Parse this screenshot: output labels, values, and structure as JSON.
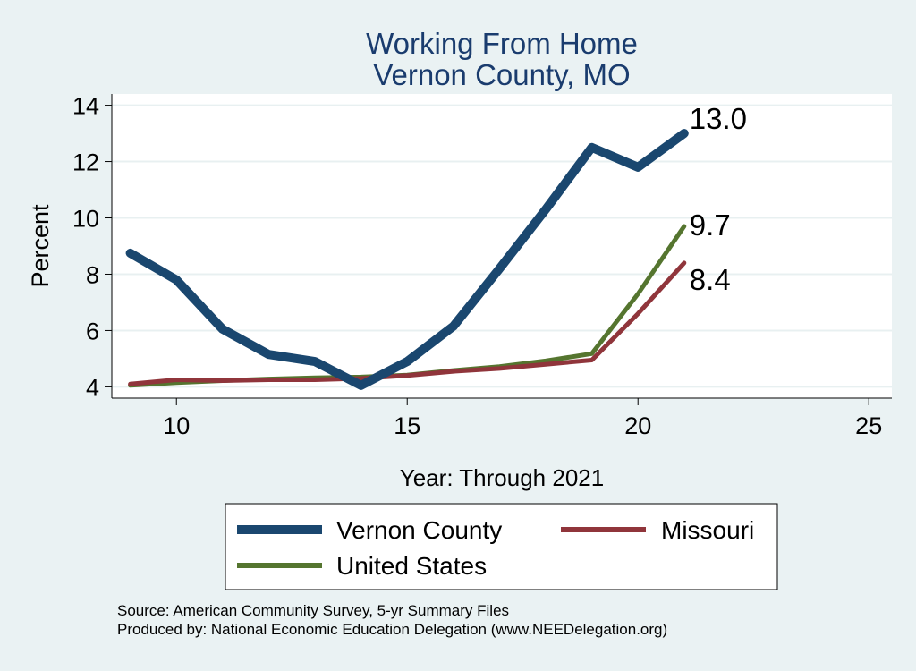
{
  "chart_data": {
    "type": "line",
    "title": "Working From Home",
    "subtitle": "Vernon County, MO",
    "xlabel": "Year: Through 2021",
    "ylabel": "Percent",
    "xlim": [
      8.6,
      25.5
    ],
    "ylim": [
      3.6,
      14.4
    ],
    "xticks": [
      10,
      15,
      20,
      25
    ],
    "yticks": [
      4,
      6,
      8,
      10,
      12,
      14
    ],
    "grid": "horizontal",
    "legend_position": "bottom",
    "series": [
      {
        "name": "Vernon County",
        "color": "#1a476f",
        "x": [
          9,
          10,
          11,
          12,
          13,
          14,
          15,
          16,
          17,
          18,
          19,
          20,
          21
        ],
        "values": [
          8.75,
          7.8,
          6.05,
          5.15,
          4.9,
          4.05,
          4.9,
          6.15,
          8.2,
          10.3,
          12.5,
          11.8,
          13.0
        ],
        "end_label": "13.0"
      },
      {
        "name": "Missouri",
        "color": "#90353b",
        "x": [
          9,
          10,
          11,
          12,
          13,
          14,
          15,
          16,
          17,
          18,
          19,
          20,
          21
        ],
        "values": [
          4.1,
          4.25,
          4.22,
          4.25,
          4.25,
          4.3,
          4.4,
          4.55,
          4.65,
          4.8,
          4.95,
          6.6,
          8.4
        ],
        "end_label": "8.4"
      },
      {
        "name": "United States",
        "color": "#55752f",
        "x": [
          9,
          10,
          11,
          12,
          13,
          14,
          15,
          16,
          17,
          18,
          19,
          20,
          21
        ],
        "values": [
          4.05,
          4.15,
          4.22,
          4.28,
          4.32,
          4.35,
          4.42,
          4.58,
          4.72,
          4.92,
          5.18,
          7.3,
          9.7
        ],
        "end_label": "9.7"
      }
    ]
  },
  "notes": {
    "source": "Source: American Community Survey, 5-yr Summary Files",
    "produced_by": "Produced by: National Economic Education Delegation (www.NEEDelegation.org)"
  }
}
